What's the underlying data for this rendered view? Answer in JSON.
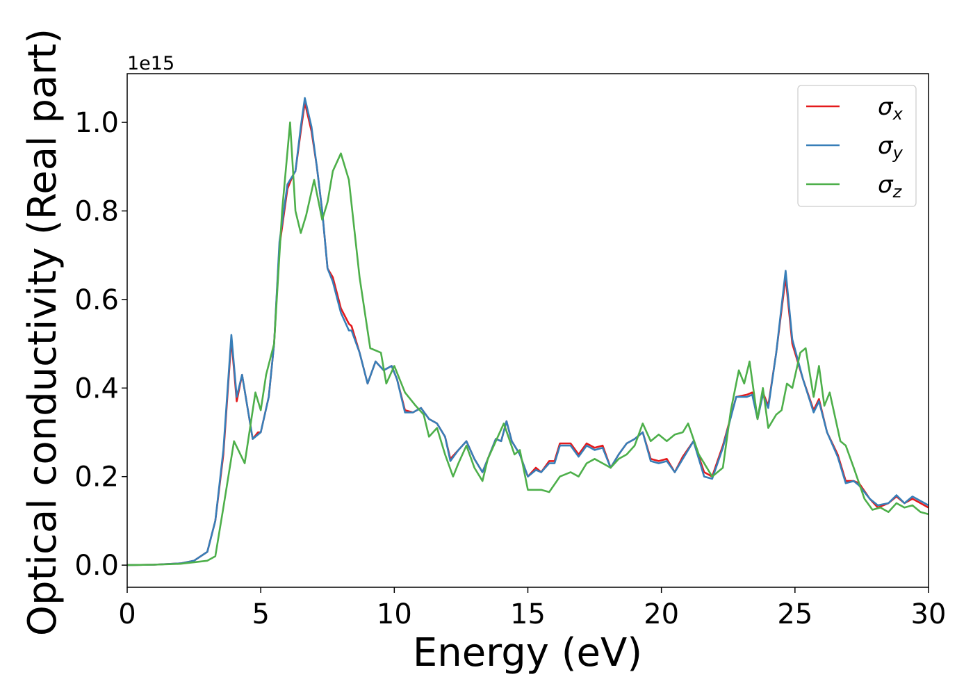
{
  "chart_data": {
    "type": "line",
    "xlabel": "Energy (eV)",
    "ylabel": "Optical conductivity (Real part)",
    "y_offset_label": "1e15",
    "xlim": [
      0,
      30
    ],
    "xticks": [
      0,
      5,
      10,
      15,
      20,
      25,
      30
    ],
    "ylim": [
      -0.05,
      1.11
    ],
    "yticks": [
      {
        "value": 0,
        "label": "0.0"
      },
      0.2,
      0.4,
      0.6,
      0.8,
      {
        "value": 1,
        "label": "1.0"
      }
    ],
    "grid": false,
    "legend": "upper right",
    "series": [
      {
        "name": "σx",
        "color": "#e41a1c",
        "x": [
          0,
          1,
          2,
          2.5,
          3,
          3.3,
          3.6,
          3.9,
          4.1,
          4.3,
          4.7,
          4.9,
          5.0,
          5.3,
          5.5,
          5.7,
          6.0,
          6.2,
          6.3,
          6.5,
          6.65,
          6.9,
          7.1,
          7.3,
          7.5,
          7.7,
          8.0,
          8.3,
          8.4,
          8.7,
          9.0,
          9.3,
          9.6,
          9.9,
          10.1,
          10.4,
          10.7,
          11.0,
          11.3,
          11.6,
          11.9,
          12.1,
          12.4,
          12.7,
          13.0,
          13.3,
          13.5,
          13.8,
          14.0,
          14.2,
          14.4,
          14.7,
          15.0,
          15.3,
          15.5,
          15.8,
          16.0,
          16.2,
          16.6,
          16.9,
          17.2,
          17.5,
          17.8,
          18.1,
          18.4,
          18.7,
          19.0,
          19.3,
          19.6,
          19.9,
          20.2,
          20.5,
          20.8,
          21.2,
          21.6,
          21.9,
          22.3,
          22.8,
          23.2,
          23.4,
          23.6,
          23.8,
          24.0,
          24.3,
          24.65,
          24.9,
          25.3,
          25.7,
          25.9,
          26.2,
          26.6,
          26.9,
          27.2,
          27.4,
          27.8,
          28.1,
          28.5,
          28.8,
          29.1,
          29.4,
          29.7,
          30
        ],
        "values": [
          0,
          0.001,
          0.004,
          0.01,
          0.03,
          0.1,
          0.25,
          0.51,
          0.37,
          0.43,
          0.285,
          0.3,
          0.3,
          0.38,
          0.5,
          0.72,
          0.85,
          0.88,
          0.89,
          0.98,
          1.045,
          0.98,
          0.9,
          0.8,
          0.67,
          0.65,
          0.58,
          0.545,
          0.54,
          0.48,
          0.41,
          0.46,
          0.44,
          0.45,
          0.42,
          0.35,
          0.345,
          0.355,
          0.33,
          0.32,
          0.29,
          0.24,
          0.26,
          0.28,
          0.24,
          0.21,
          0.24,
          0.285,
          0.28,
          0.325,
          0.28,
          0.25,
          0.2,
          0.22,
          0.21,
          0.235,
          0.235,
          0.275,
          0.275,
          0.25,
          0.275,
          0.265,
          0.27,
          0.22,
          0.25,
          0.275,
          0.285,
          0.3,
          0.24,
          0.235,
          0.24,
          0.21,
          0.245,
          0.28,
          0.21,
          0.2,
          0.27,
          0.38,
          0.385,
          0.39,
          0.33,
          0.39,
          0.36,
          0.48,
          0.65,
          0.5,
          0.42,
          0.35,
          0.375,
          0.3,
          0.25,
          0.19,
          0.19,
          0.185,
          0.15,
          0.13,
          0.14,
          0.155,
          0.14,
          0.15,
          0.14,
          0.13
        ]
      },
      {
        "name": "σy",
        "color": "#377eb8",
        "x": [
          0,
          1,
          2,
          2.5,
          3,
          3.3,
          3.6,
          3.9,
          4.1,
          4.3,
          4.7,
          4.9,
          5.0,
          5.3,
          5.5,
          5.7,
          6.0,
          6.2,
          6.3,
          6.5,
          6.65,
          6.9,
          7.1,
          7.3,
          7.5,
          7.7,
          8.0,
          8.3,
          8.4,
          8.7,
          9.0,
          9.3,
          9.6,
          9.9,
          10.1,
          10.4,
          10.7,
          11.0,
          11.3,
          11.6,
          11.9,
          12.1,
          12.4,
          12.7,
          13.0,
          13.3,
          13.5,
          13.8,
          14.0,
          14.2,
          14.4,
          14.7,
          15.0,
          15.3,
          15.5,
          15.8,
          16.0,
          16.2,
          16.6,
          16.9,
          17.2,
          17.5,
          17.8,
          18.1,
          18.4,
          18.7,
          19.0,
          19.3,
          19.6,
          19.9,
          20.2,
          20.5,
          20.8,
          21.2,
          21.6,
          21.9,
          22.3,
          22.8,
          23.2,
          23.4,
          23.6,
          23.8,
          24.0,
          24.3,
          24.65,
          24.9,
          25.3,
          25.7,
          25.9,
          26.2,
          26.6,
          26.9,
          27.2,
          27.4,
          27.8,
          28.1,
          28.5,
          28.8,
          29.1,
          29.4,
          29.7,
          30
        ],
        "values": [
          0,
          0.001,
          0.004,
          0.01,
          0.03,
          0.1,
          0.26,
          0.52,
          0.38,
          0.43,
          0.285,
          0.295,
          0.3,
          0.38,
          0.5,
          0.73,
          0.86,
          0.88,
          0.89,
          0.99,
          1.055,
          0.99,
          0.9,
          0.8,
          0.67,
          0.64,
          0.57,
          0.53,
          0.53,
          0.48,
          0.41,
          0.46,
          0.44,
          0.45,
          0.42,
          0.345,
          0.345,
          0.355,
          0.33,
          0.32,
          0.29,
          0.235,
          0.26,
          0.28,
          0.24,
          0.21,
          0.24,
          0.285,
          0.28,
          0.325,
          0.28,
          0.25,
          0.2,
          0.215,
          0.21,
          0.23,
          0.23,
          0.27,
          0.27,
          0.245,
          0.27,
          0.26,
          0.265,
          0.22,
          0.25,
          0.275,
          0.285,
          0.3,
          0.235,
          0.23,
          0.235,
          0.21,
          0.24,
          0.28,
          0.2,
          0.195,
          0.265,
          0.38,
          0.38,
          0.385,
          0.33,
          0.385,
          0.355,
          0.48,
          0.665,
          0.51,
          0.42,
          0.345,
          0.37,
          0.3,
          0.245,
          0.185,
          0.19,
          0.18,
          0.15,
          0.135,
          0.14,
          0.158,
          0.14,
          0.155,
          0.145,
          0.135
        ]
      },
      {
        "name": "σz",
        "color": "#4daf4a",
        "x": [
          0,
          1,
          2,
          3,
          3.3,
          3.6,
          4.0,
          4.4,
          4.8,
          5.0,
          5.2,
          5.5,
          5.8,
          6.1,
          6.3,
          6.5,
          6.7,
          7.0,
          7.3,
          7.5,
          7.7,
          8.0,
          8.3,
          8.7,
          9.1,
          9.5,
          9.7,
          10.0,
          10.4,
          10.8,
          11.1,
          11.3,
          11.6,
          11.9,
          12.2,
          12.4,
          12.7,
          13.0,
          13.3,
          13.5,
          13.8,
          14.1,
          14.5,
          14.7,
          15.0,
          15.5,
          15.8,
          16.2,
          16.6,
          16.9,
          17.2,
          17.5,
          17.8,
          18.1,
          18.4,
          18.7,
          19.0,
          19.3,
          19.6,
          19.9,
          20.2,
          20.5,
          20.8,
          21.0,
          21.4,
          21.9,
          22.3,
          22.6,
          22.9,
          23.1,
          23.3,
          23.6,
          23.8,
          24.0,
          24.3,
          24.5,
          24.7,
          24.9,
          25.2,
          25.4,
          25.7,
          25.9,
          26.1,
          26.3,
          26.7,
          26.9,
          27.2,
          27.6,
          27.9,
          28.2,
          28.5,
          28.8,
          29.1,
          29.4,
          29.7,
          30
        ],
        "values": [
          0,
          0.001,
          0.003,
          0.01,
          0.02,
          0.13,
          0.28,
          0.23,
          0.39,
          0.35,
          0.43,
          0.5,
          0.8,
          1.0,
          0.8,
          0.75,
          0.79,
          0.87,
          0.78,
          0.82,
          0.89,
          0.93,
          0.87,
          0.65,
          0.49,
          0.48,
          0.41,
          0.45,
          0.39,
          0.36,
          0.34,
          0.29,
          0.31,
          0.25,
          0.2,
          0.23,
          0.27,
          0.22,
          0.19,
          0.24,
          0.28,
          0.32,
          0.25,
          0.26,
          0.17,
          0.17,
          0.165,
          0.2,
          0.21,
          0.2,
          0.23,
          0.24,
          0.23,
          0.22,
          0.24,
          0.25,
          0.27,
          0.32,
          0.28,
          0.295,
          0.28,
          0.295,
          0.3,
          0.32,
          0.25,
          0.2,
          0.22,
          0.35,
          0.44,
          0.41,
          0.46,
          0.33,
          0.4,
          0.31,
          0.34,
          0.35,
          0.41,
          0.4,
          0.48,
          0.49,
          0.38,
          0.45,
          0.36,
          0.39,
          0.28,
          0.27,
          0.22,
          0.15,
          0.125,
          0.13,
          0.12,
          0.14,
          0.13,
          0.135,
          0.12,
          0.115
        ]
      }
    ]
  }
}
